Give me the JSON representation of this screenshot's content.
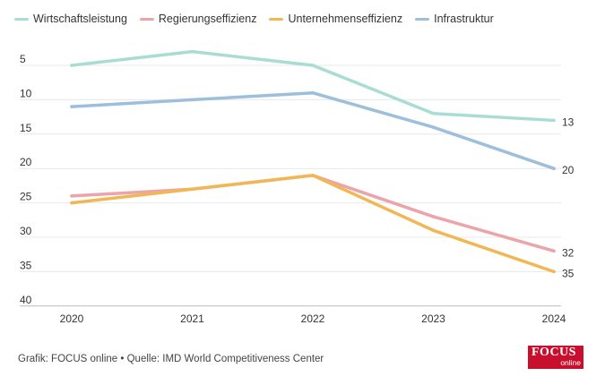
{
  "chart_data": {
    "type": "line",
    "title": "",
    "xlabel": "",
    "ylabel": "",
    "y_inverted": true,
    "ylim": [
      3,
      40
    ],
    "x": [
      "2020",
      "2021",
      "2022",
      "2023",
      "2024"
    ],
    "y_ticks": [
      "5",
      "10",
      "15",
      "20",
      "25",
      "30",
      "35",
      "40"
    ],
    "series": [
      {
        "name": "Wirtschaftsleistung",
        "color": "#a9ddd3",
        "values": [
          5,
          3,
          5,
          12,
          13
        ],
        "end_label": "13"
      },
      {
        "name": "Regierungseffizienz",
        "color": "#eca4ab",
        "values": [
          24,
          23,
          21,
          27,
          32
        ],
        "end_label": "32"
      },
      {
        "name": "Unternehmenseffizienz",
        "color": "#f2b755",
        "values": [
          25,
          23,
          21,
          29,
          35
        ],
        "end_label": "35"
      },
      {
        "name": "Infrastruktur",
        "color": "#9dbfdb",
        "values": [
          11,
          10,
          9,
          14,
          20
        ],
        "end_label": "20"
      }
    ],
    "grid": true,
    "legend": "top-left"
  },
  "footer": {
    "source": "Grafik: FOCUS online • Quelle: IMD World Competitiveness Center"
  },
  "logo": {
    "main": "FOCUS",
    "sub": "online",
    "color": "#c8102e"
  }
}
